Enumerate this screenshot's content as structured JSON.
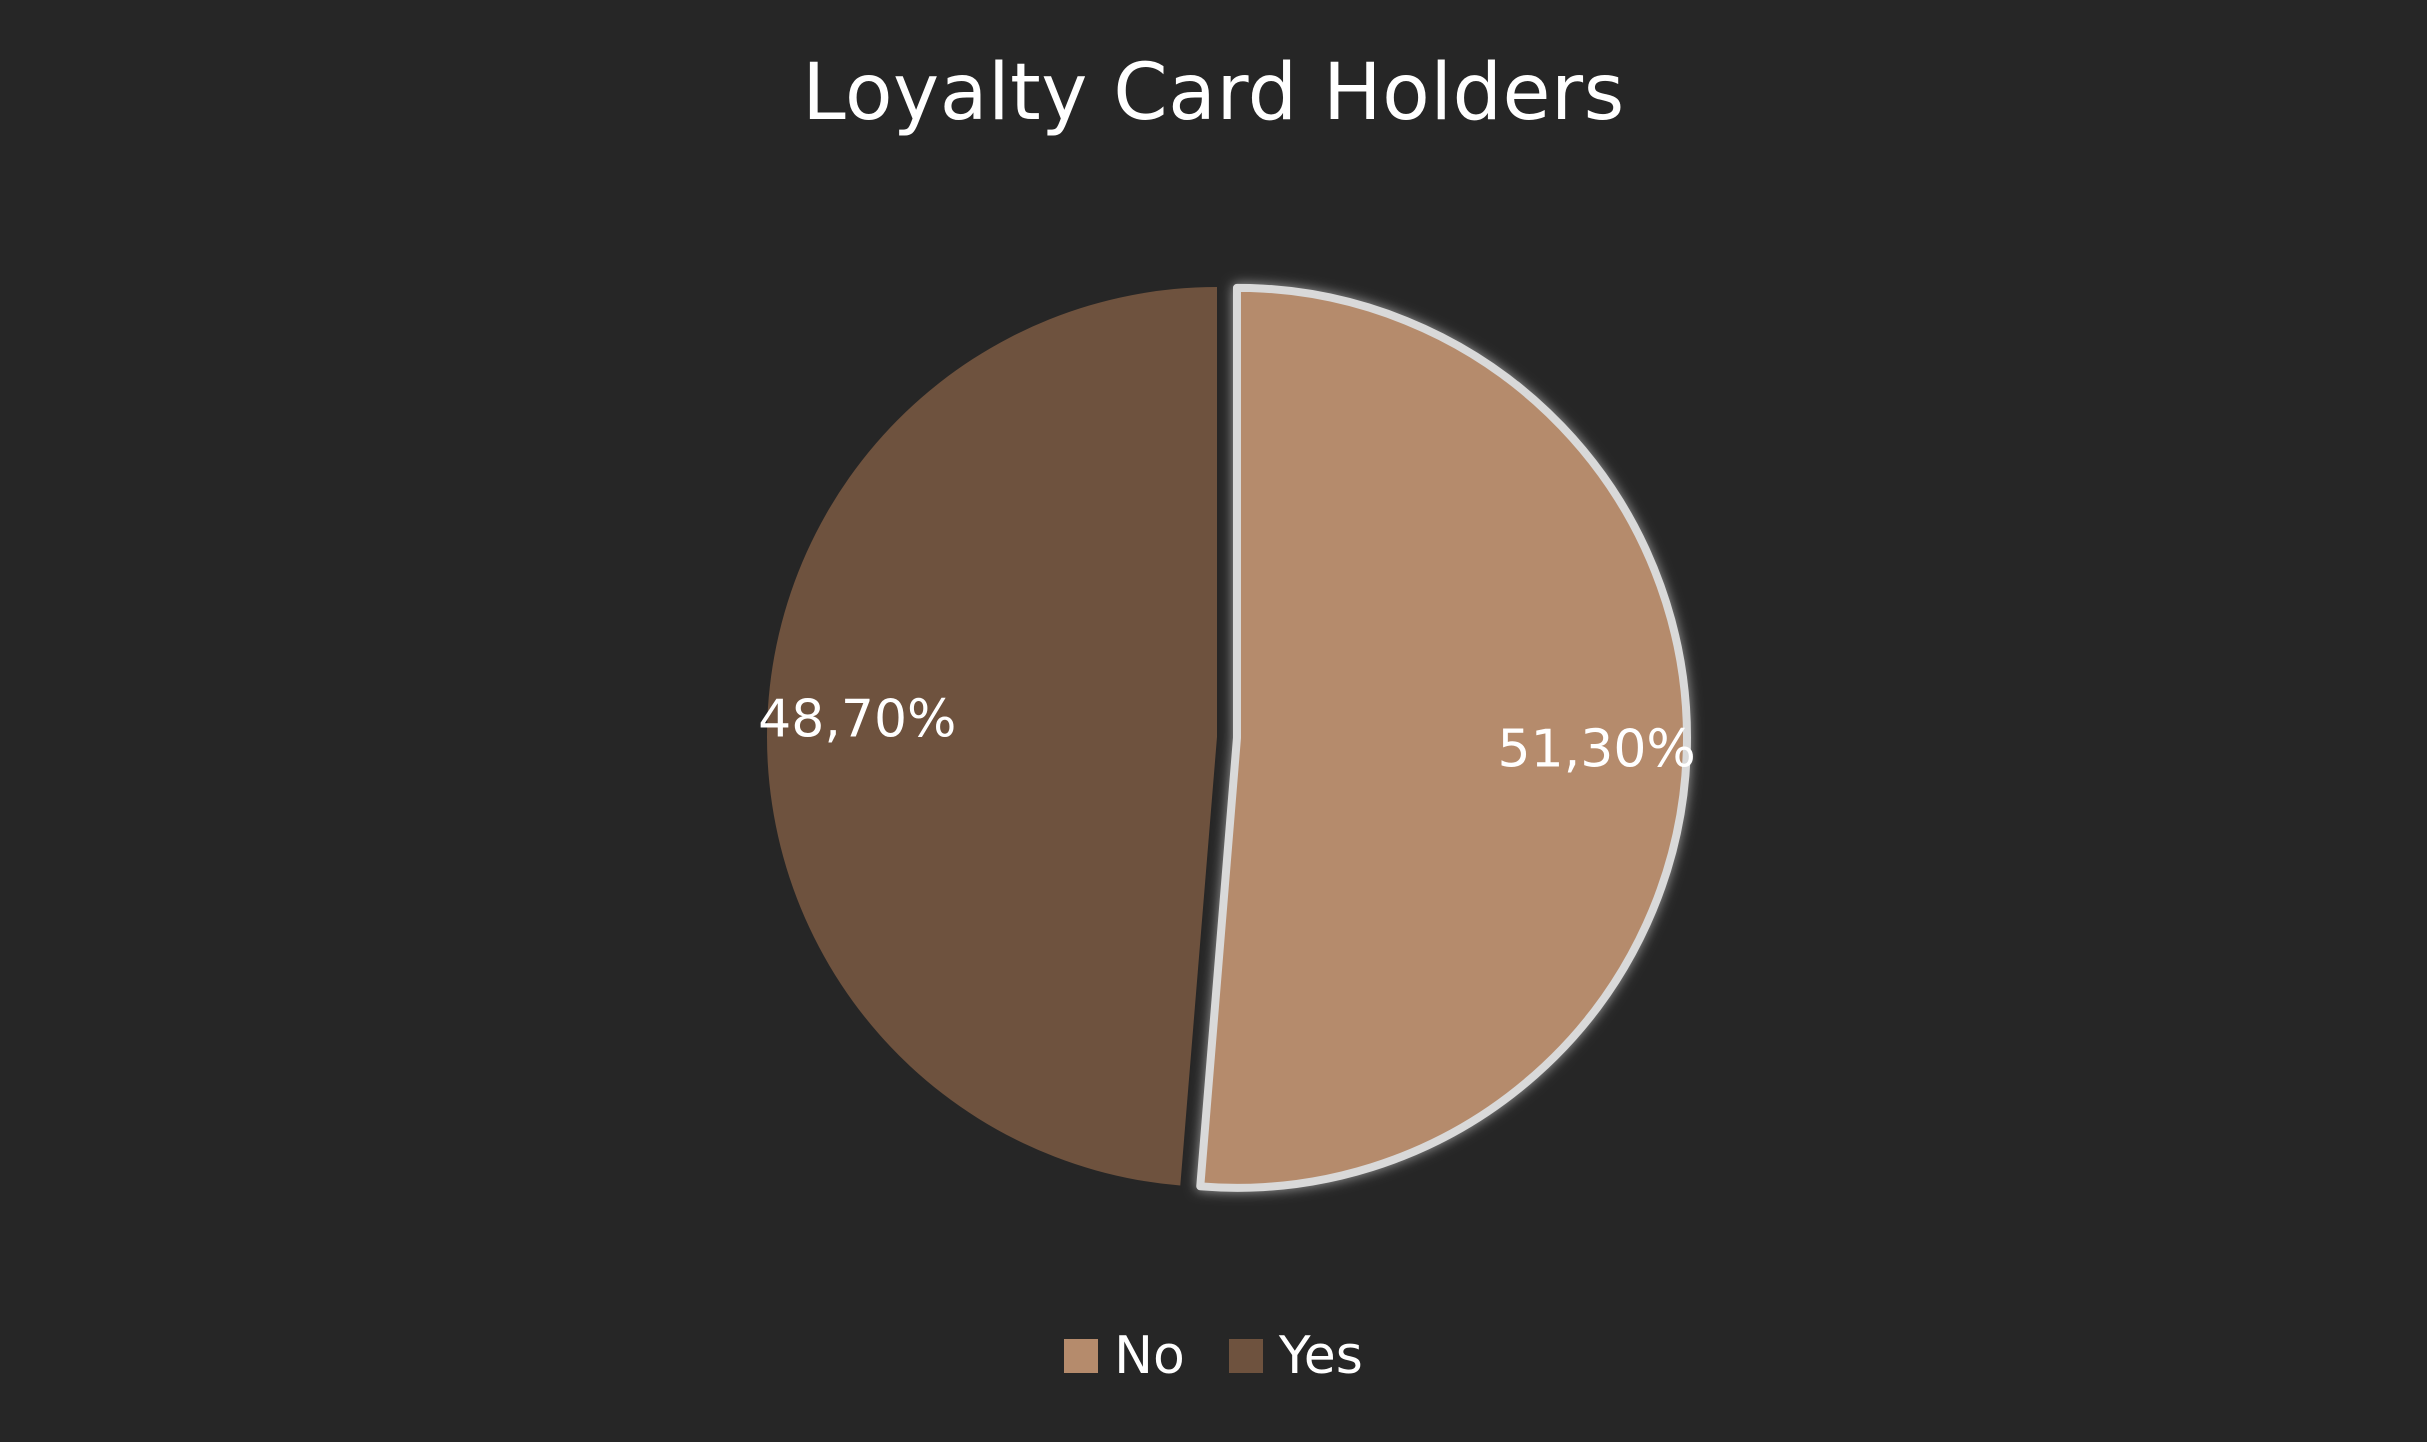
{
  "chart_data": {
    "type": "pie",
    "title": "Loyalty Card Holders",
    "slices": [
      {
        "name": "No",
        "value": 51.3,
        "label": "51,30%",
        "color": "#B58B6C",
        "exploded": true
      },
      {
        "name": "Yes",
        "value": 48.7,
        "label": "48,70%",
        "color": "#6E523E",
        "exploded": false
      }
    ],
    "legend": {
      "position": "bottom",
      "items": [
        {
          "name": "No",
          "color": "#B58B6C"
        },
        {
          "name": "Yes",
          "color": "#6E523E"
        }
      ]
    },
    "background": "#262626",
    "highlight_outline": "#D9D9D9"
  }
}
